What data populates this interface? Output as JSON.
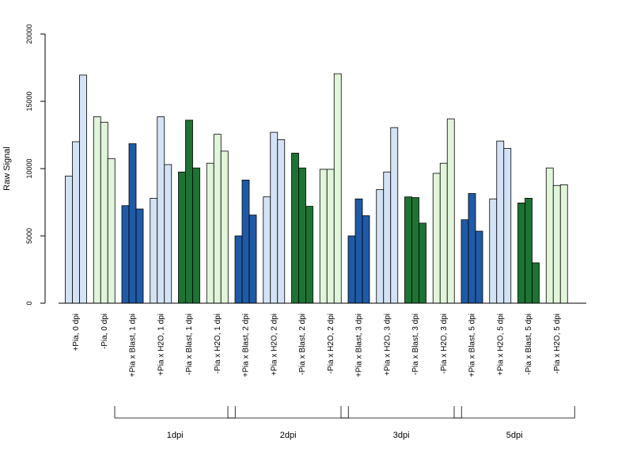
{
  "chart_data": {
    "type": "bar",
    "title": "",
    "xlabel": "",
    "ylabel": "Raw Signal",
    "ylim": [
      0,
      20000
    ],
    "yticks": [
      "0",
      "5000",
      "10000",
      "15000",
      "20000"
    ],
    "grid": false,
    "categories": [
      "+Pia, 0 dpi",
      "-Pia, 0 dpi",
      "+Pia x Blast, 1 dpi",
      "+Pia x H2O, 1 dpi",
      "-Pia x Blast, 1 dpi",
      "-Pia x H2O, 1 dpi",
      "+Pia x Blast, 2 dpi",
      "+Pia x H2O, 2 dpi",
      "-Pia x Blast, 2 dpi",
      "-Pia x H2O, 2 dpi",
      "+Pia x Blast, 3 dpi",
      "+Pia x H2O, 3 dpi",
      "-Pia x Blast, 3 dpi",
      "-Pia x H2O, 3 dpi",
      "+Pia x Blast, 5 dpi",
      "+Pia x H2O, 5 dpi",
      "-Pia x Blast, 5 dpi",
      "-Pia x H2O, 5 dpi"
    ],
    "category_colors": [
      "#d3e3f5",
      "#e1f5db",
      "#1f5aa6",
      "#d3e3f5",
      "#1d7333",
      "#e1f5db",
      "#1f5aa6",
      "#d3e3f5",
      "#1d7333",
      "#e1f5db",
      "#1f5aa6",
      "#d3e3f5",
      "#1d7333",
      "#e1f5db",
      "#1f5aa6",
      "#d3e3f5",
      "#1d7333",
      "#e1f5db"
    ],
    "replicates": [
      [
        9450,
        12000,
        16950
      ],
      [
        13850,
        13450,
        10750
      ],
      [
        7250,
        11850,
        7000
      ],
      [
        7800,
        13850,
        10300
      ],
      [
        9750,
        13600,
        10050
      ],
      [
        10400,
        12550,
        11300
      ],
      [
        5000,
        9150,
        6550
      ],
      [
        7900,
        12700,
        12150
      ],
      [
        11150,
        10050,
        7200
      ],
      [
        9950,
        9950,
        17050
      ],
      [
        5000,
        7750,
        6500
      ],
      [
        8450,
        9750,
        13050
      ],
      [
        7900,
        7850,
        5950
      ],
      [
        9650,
        10400,
        13700
      ],
      [
        6200,
        8150,
        5350
      ],
      [
        7750,
        12050,
        11500
      ],
      [
        7450,
        7800,
        3000
      ],
      [
        10050,
        8750,
        8800
      ]
    ],
    "groups": [
      {
        "label": "1dpi",
        "from": 2,
        "to": 5
      },
      {
        "label": "2dpi",
        "from": 6,
        "to": 9
      },
      {
        "label": "3dpi",
        "from": 10,
        "to": 13
      },
      {
        "label": "5dpi",
        "from": 14,
        "to": 17
      }
    ]
  }
}
